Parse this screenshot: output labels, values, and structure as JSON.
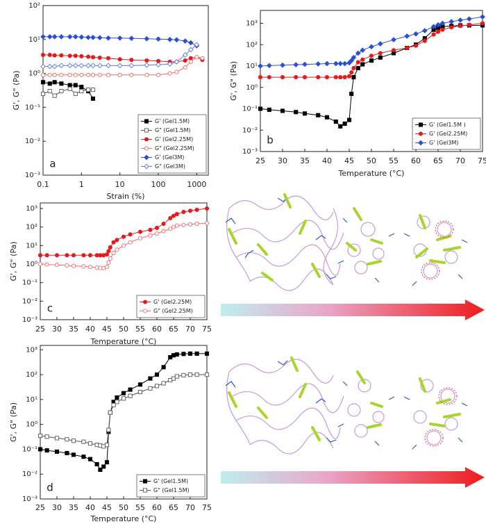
{
  "chart_data": [
    {
      "type": "line",
      "xscale": "log",
      "yscale": "log",
      "legend": "lower right",
      "x_label": "Strain (%)",
      "y_label": "G', G\" (Pa)",
      "annotation": "a",
      "x": [
        0.1,
        0.15,
        0.2,
        0.3,
        0.5,
        0.7,
        1,
        1.5,
        2,
        3,
        5,
        10,
        20,
        50,
        100,
        200,
        300,
        500,
        700,
        1000,
        1400
      ],
      "xlim": [
        0.1,
        2000
      ],
      "xticks": [
        0.1,
        1,
        10,
        100,
        1000
      ],
      "ylim": [
        0.001,
        100
      ],
      "yticks": [
        {
          "value": 0.001,
          "label": "10⁻³"
        },
        {
          "value": 0.01,
          "label": "10⁻²"
        },
        {
          "value": 0.1,
          "label": "10⁻¹"
        },
        {
          "value": 1,
          "label": "10⁰"
        },
        {
          "value": 10,
          "label": "10¹"
        },
        {
          "value": 100,
          "label": "10²"
        }
      ],
      "series": [
        {
          "name": "G' (Gel1.5M)",
          "color": "#000000",
          "marker": "square",
          "filled": true,
          "values": [
            0.55,
            0.5,
            0.55,
            0.5,
            0.45,
            0.45,
            0.4,
            0.3,
            0.18,
            null,
            null,
            null,
            null,
            null,
            null,
            null,
            null,
            null,
            null,
            null,
            null
          ]
        },
        {
          "name": "G\" (Gel1.5M)",
          "color": "#555555",
          "marker": "square",
          "filled": false,
          "values": [
            0.25,
            0.3,
            0.22,
            0.3,
            0.35,
            0.25,
            0.3,
            0.33,
            0.33,
            null,
            null,
            null,
            null,
            null,
            null,
            null,
            null,
            null,
            null,
            null,
            null
          ]
        },
        {
          "name": "G' (Gel2.25M)",
          "color": "#e8191b",
          "marker": "circle",
          "filled": true,
          "values": [
            3.5,
            3.5,
            3.4,
            3.4,
            3.3,
            3.3,
            3.2,
            3.1,
            3,
            2.9,
            2.8,
            2.6,
            2.5,
            2.4,
            2.3,
            2.2,
            2.2,
            2.4,
            2.8,
            3,
            2.5
          ]
        },
        {
          "name": "G\" (Gel2.25M)",
          "color": "#f06a6a",
          "marker": "circle",
          "filled": false,
          "values": [
            0.9,
            0.9,
            0.9,
            0.9,
            0.9,
            0.9,
            0.9,
            0.9,
            0.9,
            0.9,
            0.9,
            0.9,
            0.9,
            0.9,
            0.9,
            1,
            1.1,
            1.5,
            2.2,
            3,
            2.8
          ]
        },
        {
          "name": "G' (Gel3M)",
          "color": "#2a4fd6",
          "marker": "diamond",
          "filled": true,
          "values": [
            12,
            12,
            12,
            12,
            12,
            12,
            11.8,
            11.5,
            11.5,
            11.3,
            11,
            11,
            10.8,
            10.5,
            10.3,
            10,
            9.8,
            9,
            8,
            6.5,
            null
          ]
        },
        {
          "name": "G\" (Gel3M)",
          "color": "#5a78e0",
          "marker": "diamond",
          "filled": false,
          "values": [
            1.6,
            1.6,
            1.6,
            1.7,
            1.7,
            1.7,
            1.7,
            1.7,
            1.7,
            1.7,
            1.7,
            1.7,
            1.7,
            1.75,
            1.8,
            1.9,
            2.2,
            3.5,
            5,
            7,
            null
          ]
        }
      ]
    },
    {
      "type": "line",
      "yscale": "log",
      "legend": "lower right",
      "x_label": "Temperature (°C)",
      "y_label": "G', G\" (Pa)",
      "annotation": "b",
      "x": [
        25,
        27,
        30,
        33,
        35,
        38,
        40,
        42,
        43,
        44,
        45,
        45.5,
        46,
        47,
        48,
        50,
        52,
        55,
        58,
        60,
        62,
        64,
        65,
        66,
        68,
        70,
        72,
        75
      ],
      "xlim": [
        25,
        75
      ],
      "xticks": [
        25,
        30,
        35,
        40,
        45,
        50,
        55,
        60,
        65,
        70,
        75
      ],
      "ylim": [
        0.001,
        4000
      ],
      "yticks": [
        {
          "value": 0.001,
          "label": "10⁻³"
        },
        {
          "value": 0.01,
          "label": "10⁻²"
        },
        {
          "value": 0.1,
          "label": "10⁻¹"
        },
        {
          "value": 1,
          "label": "10⁰"
        },
        {
          "value": 10,
          "label": "10¹"
        },
        {
          "value": 100,
          "label": "10²"
        },
        {
          "value": 1000,
          "label": "10³"
        }
      ],
      "series": [
        {
          "name": "G' (Gel1.5M )",
          "color": "#000000",
          "marker": "square",
          "filled": true,
          "values": [
            0.1,
            0.09,
            0.08,
            0.07,
            0.06,
            0.05,
            0.04,
            0.025,
            0.015,
            0.02,
            0.03,
            0.5,
            3,
            8,
            12,
            18,
            25,
            40,
            70,
            100,
            200,
            500,
            600,
            700,
            750,
            800,
            800,
            800
          ]
        },
        {
          "name": "G' (Gel2.25M)",
          "color": "#e8191b",
          "marker": "circle",
          "filled": true,
          "values": [
            3,
            3,
            3,
            3,
            3,
            3,
            3,
            3,
            3,
            3,
            3.3,
            5,
            8,
            15,
            20,
            30,
            40,
            55,
            70,
            90,
            150,
            300,
            400,
            500,
            650,
            750,
            850,
            1000
          ]
        },
        {
          "name": "G' (Gel3M)",
          "color": "#2a4fd6",
          "marker": "diamond",
          "filled": true,
          "values": [
            10,
            10.5,
            11,
            11.5,
            12,
            12.5,
            13,
            13,
            13,
            13,
            14,
            18,
            25,
            40,
            55,
            80,
            110,
            170,
            250,
            320,
            450,
            700,
            850,
            1000,
            1200,
            1400,
            1600,
            2000
          ]
        }
      ]
    },
    {
      "type": "line",
      "yscale": "log",
      "legend": "lower right",
      "x_label": "Temperature (°C)",
      "y_label": "G', G\" (Pa)",
      "annotation": "c",
      "x": [
        25,
        27,
        30,
        33,
        35,
        38,
        40,
        42,
        43,
        44,
        45,
        45.5,
        46,
        47,
        48,
        50,
        52,
        55,
        58,
        60,
        62,
        64,
        65,
        66,
        68,
        70,
        72,
        75
      ],
      "xlim": [
        25,
        75
      ],
      "xticks": [
        25,
        30,
        35,
        40,
        45,
        50,
        55,
        60,
        65,
        70,
        75
      ],
      "ylim": [
        0.001,
        2000
      ],
      "yticks": [
        {
          "value": 0.001,
          "label": "10⁻³"
        },
        {
          "value": 0.01,
          "label": "10⁻²"
        },
        {
          "value": 0.1,
          "label": "10⁻¹"
        },
        {
          "value": 1,
          "label": "10⁰"
        },
        {
          "value": 10,
          "label": "10¹"
        },
        {
          "value": 100,
          "label": "10²"
        },
        {
          "value": 1000,
          "label": "10³"
        }
      ],
      "series": [
        {
          "name": "G' (Gel2.25M)",
          "color": "#e8191b",
          "marker": "circle",
          "filled": true,
          "values": [
            3,
            3,
            3,
            3,
            3,
            3,
            3,
            3,
            3,
            3,
            3.3,
            5,
            8,
            15,
            20,
            30,
            40,
            55,
            70,
            90,
            150,
            300,
            400,
            500,
            650,
            750,
            850,
            1000
          ]
        },
        {
          "name": "G\" (Gel2.25M)",
          "color": "#f06a6a",
          "marker": "circle",
          "filled": false,
          "values": [
            1,
            0.95,
            0.9,
            0.85,
            0.8,
            0.75,
            0.7,
            0.65,
            0.62,
            0.6,
            0.7,
            1.2,
            2,
            4,
            6,
            10,
            15,
            25,
            35,
            45,
            60,
            80,
            100,
            120,
            130,
            140,
            150,
            160
          ]
        }
      ]
    },
    {
      "type": "line",
      "yscale": "log",
      "legend": "lower right",
      "x_label": "Temperature (°C)",
      "y_label": "G', G\" (Pa)",
      "annotation": "d",
      "x": [
        25,
        27,
        30,
        33,
        35,
        38,
        40,
        42,
        43,
        44,
        45,
        45.5,
        46,
        47,
        48,
        50,
        52,
        55,
        58,
        60,
        62,
        64,
        65,
        66,
        68,
        70,
        72,
        75
      ],
      "xlim": [
        25,
        75
      ],
      "xticks": [
        25,
        30,
        35,
        40,
        45,
        50,
        55,
        60,
        65,
        70,
        75
      ],
      "ylim": [
        0.001,
        1500
      ],
      "yticks": [
        {
          "value": 0.001,
          "label": "10⁻³"
        },
        {
          "value": 0.01,
          "label": "10⁻²"
        },
        {
          "value": 0.1,
          "label": "10⁻¹"
        },
        {
          "value": 1,
          "label": "10⁰"
        },
        {
          "value": 10,
          "label": "10¹"
        },
        {
          "value": 100,
          "label": "10²"
        },
        {
          "value": 1000,
          "label": "10³"
        }
      ],
      "series": [
        {
          "name": "G' (Gel1.5M)",
          "color": "#000000",
          "marker": "square",
          "filled": true,
          "values": [
            0.1,
            0.09,
            0.08,
            0.07,
            0.06,
            0.05,
            0.04,
            0.025,
            0.015,
            0.02,
            0.03,
            0.5,
            3,
            8,
            12,
            18,
            25,
            40,
            70,
            100,
            200,
            500,
            600,
            650,
            680,
            700,
            700,
            700
          ]
        },
        {
          "name": "G\" (Gel1.5M)",
          "color": "#555555",
          "marker": "square",
          "filled": false,
          "values": [
            0.35,
            0.32,
            0.28,
            0.25,
            0.22,
            0.2,
            0.17,
            0.15,
            0.14,
            0.13,
            0.15,
            0.6,
            3,
            6,
            8,
            11,
            14,
            20,
            28,
            35,
            45,
            60,
            70,
            85,
            95,
            100,
            100,
            100
          ]
        }
      ]
    }
  ]
}
